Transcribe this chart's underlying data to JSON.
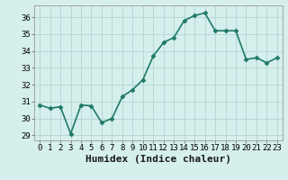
{
  "x": [
    0,
    1,
    2,
    3,
    4,
    5,
    6,
    7,
    8,
    9,
    10,
    11,
    12,
    13,
    14,
    15,
    16,
    17,
    18,
    19,
    20,
    21,
    22,
    23
  ],
  "y": [
    30.8,
    30.6,
    30.7,
    29.1,
    30.8,
    30.75,
    29.75,
    30.0,
    31.3,
    31.7,
    32.3,
    33.7,
    34.5,
    34.8,
    35.8,
    36.1,
    36.25,
    35.2,
    35.2,
    35.2,
    33.5,
    33.6,
    33.3,
    33.6
  ],
  "line_color": "#1f7a64",
  "marker": "D",
  "marker_size": 2.5,
  "bg_color": "#d5efed",
  "grid_color": "#b8d8d5",
  "xlabel": "Humidex (Indice chaleur)",
  "ylim": [
    28.7,
    36.7
  ],
  "xlim": [
    -0.5,
    23.5
  ],
  "yticks": [
    29,
    30,
    31,
    32,
    33,
    34,
    35,
    36
  ],
  "xticks": [
    0,
    1,
    2,
    3,
    4,
    5,
    6,
    7,
    8,
    9,
    10,
    11,
    12,
    13,
    14,
    15,
    16,
    17,
    18,
    19,
    20,
    21,
    22,
    23
  ],
  "tick_fontsize": 6.5,
  "xlabel_fontsize": 8,
  "line_width": 1.2
}
